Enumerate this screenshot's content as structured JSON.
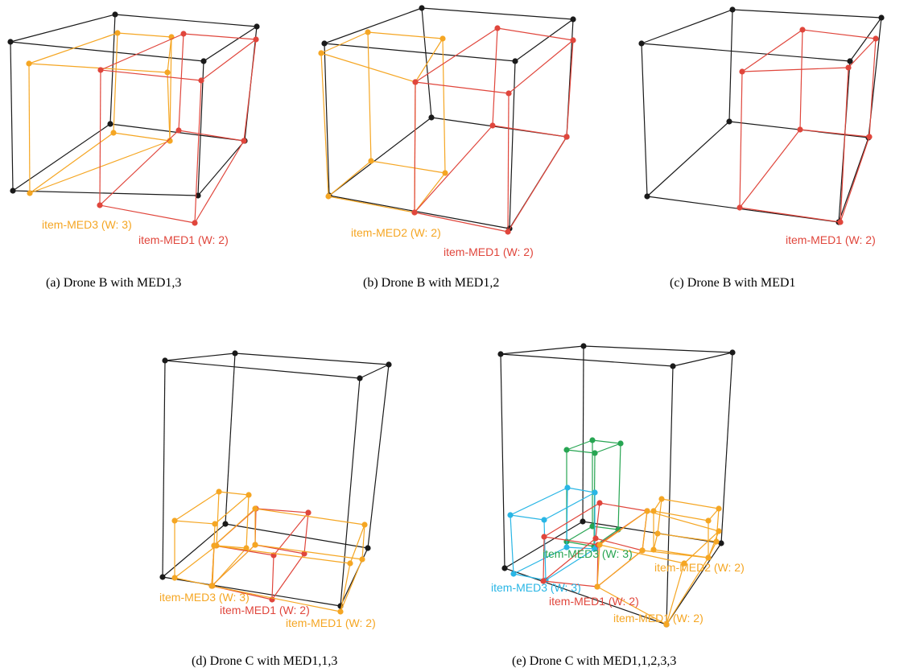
{
  "colors": {
    "frame": "#1a1a1a",
    "med1": "#e0463c",
    "med_orange": "#f5a623",
    "med3_cyan": "#29b6e5",
    "med3_green": "#27a552"
  },
  "panels": [
    {
      "caption": "(a)  Drone B with MED1,3",
      "labels": [
        {
          "text": "item-MED3 (W: 3)",
          "color": "med_orange"
        },
        {
          "text": "item-MED1 (W: 2)",
          "color": "med1"
        }
      ]
    },
    {
      "caption": "(b)  Drone B with MED1,2",
      "labels": [
        {
          "text": "item-MED2 (W: 2)",
          "color": "med_orange"
        },
        {
          "text": "item-MED1 (W: 2)",
          "color": "med1"
        }
      ]
    },
    {
      "caption": "(c)  Drone B with MED1",
      "labels": [
        {
          "text": "item-MED1 (W: 2)",
          "color": "med1"
        }
      ]
    },
    {
      "caption": "(d)  Drone C with MED1,1,3",
      "labels": [
        {
          "text": "item-MED3 (W: 3)",
          "color": "med_orange"
        },
        {
          "text": "item-MED1 (W: 2)",
          "color": "med1"
        },
        {
          "text": "item-MED1 (W: 2)",
          "color": "med_orange"
        }
      ]
    },
    {
      "caption": "(e)  Drone C with MED1,1,2,3,3",
      "labels": [
        {
          "text": "item-MED3 (W: 3)",
          "color": "med3_green"
        },
        {
          "text": "item-MED2 (W: 2)",
          "color": "med_orange"
        },
        {
          "text": "item-MED3 (W: 3)",
          "color": "med3_cyan"
        },
        {
          "text": "item-MED1 (W: 2)",
          "color": "med1"
        },
        {
          "text": "item-MED1 (W: 2)",
          "color": "med_orange"
        }
      ]
    }
  ]
}
